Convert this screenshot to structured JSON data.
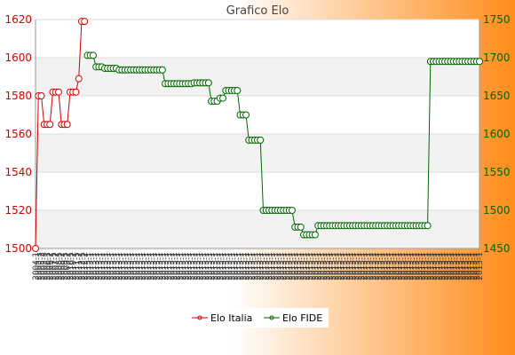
{
  "chart_data": {
    "type": "line",
    "title": "Grafico Elo",
    "legend_position": "bottom",
    "grid": true,
    "y_left": {
      "min": 1500,
      "max": 1620,
      "ticks": [
        1500,
        1520,
        1540,
        1560,
        1580,
        1600,
        1620
      ],
      "color": "#cc0000"
    },
    "y_right": {
      "min": 1450,
      "max": 1750,
      "ticks": [
        1450,
        1500,
        1550,
        1600,
        1650,
        1700,
        1750
      ],
      "color": "#006600"
    },
    "series": [
      {
        "name": "Elo Italia",
        "axis": "left",
        "color": "#d40000",
        "values": [
          1500,
          1580,
          1580,
          1565,
          1565,
          1565,
          1582,
          1582,
          1582,
          1565,
          1565,
          1565,
          1582,
          1582,
          1582,
          1589,
          1619,
          1619
        ]
      },
      {
        "name": "Elo FIDE",
        "axis": "right",
        "color": "#006600",
        "start_index": 18,
        "segments": [
          {
            "count": 3,
            "value": 1703
          },
          {
            "count": 3,
            "value": 1688
          },
          {
            "count": 5,
            "value": 1686
          },
          {
            "count": 16,
            "value": 1684
          },
          {
            "count": 10,
            "value": 1666
          },
          {
            "count": 6,
            "value": 1667
          },
          {
            "count": 3,
            "value": 1643
          },
          {
            "count": 2,
            "value": 1647
          },
          {
            "count": 5,
            "value": 1657
          },
          {
            "count": 3,
            "value": 1625
          },
          {
            "count": 5,
            "value": 1592
          },
          {
            "count": 11,
            "value": 1500
          },
          {
            "count": 3,
            "value": 1478
          },
          {
            "count": 5,
            "value": 1468
          },
          {
            "count": 39,
            "value": 1480
          },
          {
            "count": 18,
            "value": 1695
          }
        ]
      }
    ],
    "x_label_texts": [
      "2004-1",
      "2005-1",
      "2005-2",
      "2005-3",
      "2006-1",
      "2006-2",
      "2007-1",
      "2007-2",
      "2008-1",
      "2008-2",
      "2009-1",
      "2009-2",
      "2010-1",
      "2010-2",
      "2011-1",
      "2011-2",
      "2012-1",
      "2012-2"
    ],
    "x_label_text_fide": "2013-1"
  }
}
